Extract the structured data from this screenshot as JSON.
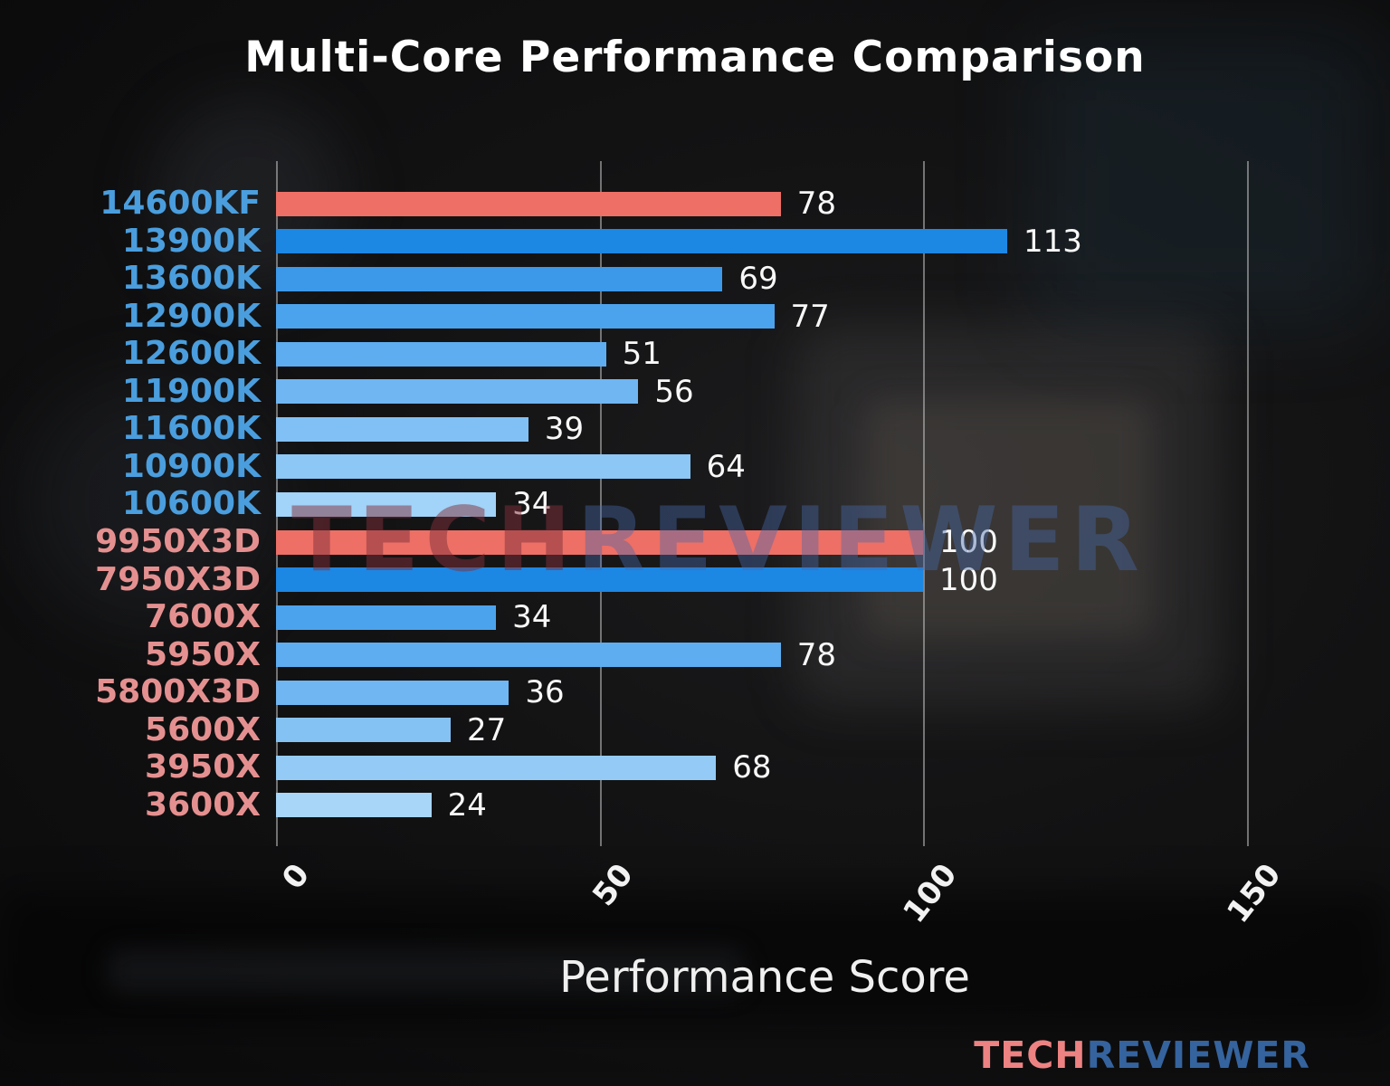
{
  "title": "Multi-Core Performance Comparison",
  "xlabel": "Performance Score",
  "watermark": {
    "part1": "TECH",
    "part2": "REVIEWER"
  },
  "logo": {
    "part1": "TECH",
    "part2": "REVIEWER"
  },
  "colors": {
    "highlight_red": "#ed6f66",
    "intel_label_blue": "#4a9ede",
    "amd_label_salmon": "#e59090",
    "grid": "rgba(195,195,195,0.55)",
    "value_text": "#f8f8f8"
  },
  "chart_data": {
    "type": "bar",
    "orientation": "horizontal",
    "title": "Multi-Core Performance Comparison",
    "xlabel": "Performance Score",
    "ylabel": "",
    "xlim": [
      0,
      158
    ],
    "xticks": [
      0,
      50,
      100,
      150
    ],
    "grid": true,
    "legend_position": "none",
    "categories": [
      "14600KF",
      "13900K",
      "13600K",
      "12900K",
      "12600K",
      "11900K",
      "11600K",
      "10900K",
      "10600K",
      "9950X3D",
      "7950X3D",
      "7600X",
      "5950X",
      "5800X3D",
      "5600X",
      "3950X",
      "3600X"
    ],
    "values": [
      78,
      113,
      69,
      77,
      51,
      56,
      39,
      64,
      34,
      100,
      100,
      34,
      78,
      36,
      27,
      68,
      24
    ],
    "bar_colors": [
      "#ed6f66",
      "#1d87e4",
      "#3c99ea",
      "#4ca3ed",
      "#5dadf0",
      "#6fb6f2",
      "#81c0f4",
      "#8cc7f5",
      "#a2d3f8",
      "#ed6f66",
      "#1d87e4",
      "#4ca3ed",
      "#5dadf0",
      "#6fb6f2",
      "#85c2f4",
      "#93cbf6",
      "#a8d6f8"
    ],
    "label_colors": [
      "#4a9ede",
      "#4a9ede",
      "#4a9ede",
      "#4a9ede",
      "#4a9ede",
      "#4a9ede",
      "#4a9ede",
      "#4a9ede",
      "#4a9ede",
      "#e59090",
      "#e59090",
      "#e59090",
      "#e59090",
      "#e59090",
      "#e59090",
      "#e59090",
      "#e59090"
    ]
  }
}
